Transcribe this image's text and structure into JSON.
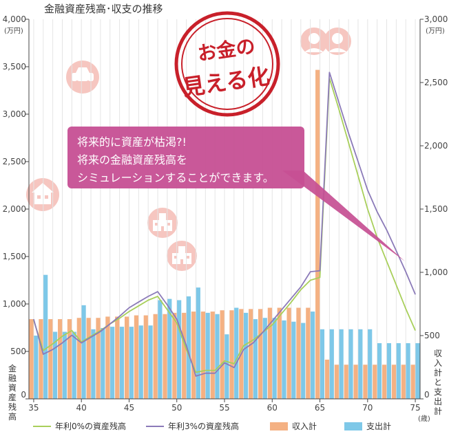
{
  "chart_data": {
    "type": "bar",
    "title": "金融資産残高･収支の推移",
    "y_left_unit": "(万円)",
    "y_right_unit": "(万円)",
    "x_unit": "(歳)",
    "y_left_label": "金融資産残高",
    "y_right_label": "収入計と支出計",
    "y_left_lim": [
      0,
      4000
    ],
    "y_right_lim": [
      0,
      3000
    ],
    "y_left_ticks": [
      0,
      500,
      1000,
      1500,
      2000,
      2500,
      3000,
      3500,
      4000
    ],
    "y_right_ticks": [
      0,
      500,
      1000,
      1500,
      2000,
      2500,
      3000
    ],
    "y_left_tick_labels": [
      "0",
      "500",
      "1,000",
      "1,500",
      "2,000",
      "2,500",
      "3,000",
      "3,500",
      "4,000"
    ],
    "y_right_tick_labels": [
      "0",
      "500",
      "1,000",
      "1,500",
      "2,000",
      "2,500",
      "3,000"
    ],
    "x_ticks": [
      35,
      40,
      45,
      50,
      55,
      60,
      65,
      70,
      75
    ],
    "x": [
      35,
      36,
      37,
      38,
      39,
      40,
      41,
      42,
      43,
      44,
      45,
      46,
      47,
      48,
      49,
      50,
      51,
      52,
      53,
      54,
      55,
      56,
      57,
      58,
      59,
      60,
      61,
      62,
      63,
      64,
      65,
      66,
      67,
      68,
      69,
      70,
      71,
      72,
      73,
      74,
      75
    ],
    "series": [
      {
        "name": "収入計",
        "kind": "bar",
        "axis": "right",
        "color": "#f4b183",
        "values": [
          630,
          630,
          630,
          630,
          630,
          640,
          640,
          640,
          650,
          650,
          650,
          660,
          660,
          670,
          670,
          680,
          680,
          690,
          690,
          690,
          700,
          700,
          710,
          710,
          710,
          720,
          720,
          720,
          720,
          720,
          2600,
          310,
          270,
          270,
          270,
          270,
          270,
          270,
          270,
          270,
          270
        ]
      },
      {
        "name": "支出計",
        "kind": "bar",
        "axis": "right",
        "color": "#7ec8e8",
        "values": [
          500,
          980,
          530,
          530,
          530,
          740,
          550,
          560,
          570,
          570,
          570,
          580,
          580,
          780,
          790,
          780,
          810,
          880,
          680,
          670,
          510,
          720,
          680,
          630,
          640,
          640,
          620,
          610,
          600,
          690,
          550,
          550,
          550,
          550,
          550,
          550,
          440,
          440,
          440,
          440,
          440
        ]
      },
      {
        "name": "年利0%の資産残高",
        "kind": "line",
        "axis": "left",
        "color": "#a8cf5a",
        "values": [
          830,
          510,
          580,
          660,
          720,
          600,
          660,
          720,
          790,
          850,
          920,
          980,
          1040,
          1080,
          940,
          800,
          520,
          280,
          300,
          300,
          400,
          370,
          560,
          620,
          700,
          780,
          900,
          1020,
          1150,
          1250,
          1280,
          3380,
          3050,
          2700,
          2350,
          2000,
          1700,
          1450,
          1200,
          950,
          720
        ]
      },
      {
        "name": "年利3%の資産残高",
        "kind": "line",
        "axis": "left",
        "color": "#8b7ab8",
        "values": [
          840,
          470,
          520,
          590,
          670,
          590,
          650,
          710,
          790,
          870,
          960,
          1020,
          1080,
          1130,
          990,
          840,
          560,
          240,
          270,
          270,
          380,
          330,
          520,
          590,
          700,
          820,
          940,
          1060,
          1180,
          1340,
          1350,
          3440,
          3120,
          2800,
          2500,
          2200,
          1970,
          1780,
          1560,
          1340,
          1100
        ]
      }
    ],
    "legend": [
      "年利0%の資産残高",
      "年利3%の資産残高",
      "収入計",
      "支出計"
    ],
    "legend_position": "bottom",
    "grid": "x",
    "annotation": {
      "lines": [
        "将来的に資産が枯渇?!",
        "将来の金融資産残高を",
        "シミュレーションすることができます。"
      ],
      "color": "#c64f93"
    },
    "stamp_text": [
      "お金の",
      "見える化"
    ],
    "stamp_color": "#c8202a"
  }
}
